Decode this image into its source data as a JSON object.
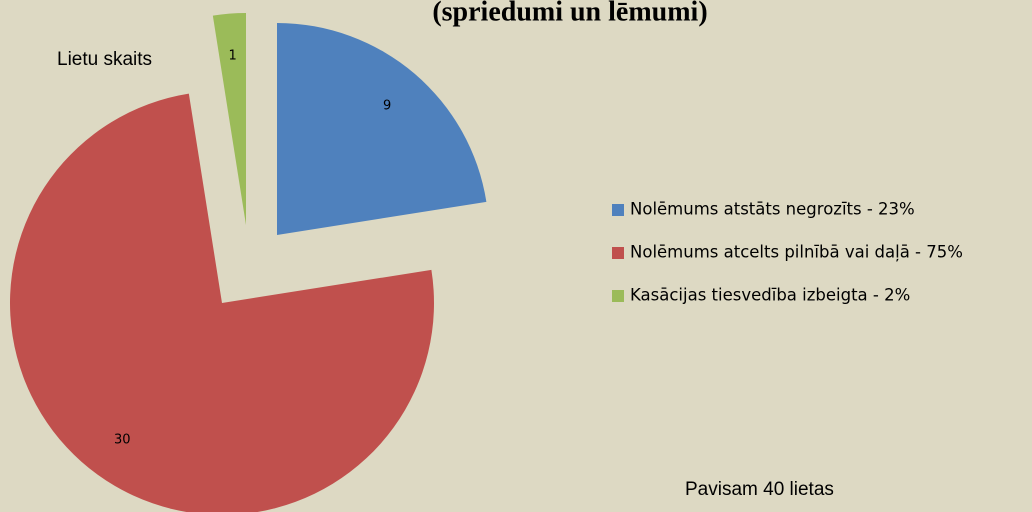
{
  "chart_data": {
    "type": "pie",
    "title": "(spriedumi un lēmumi)",
    "subtitle": "Lietu skaits",
    "annotation": "Pavisam 40 lietas",
    "categories": [
      "Nolēmums atstāts negrozīts - 23%",
      "Nolēmums atcelts pilnībā vai daļā - 75%",
      "Kasācijas tiesvedība izbeigta - 2%"
    ],
    "values": [
      9,
      30,
      1
    ],
    "colors": [
      "#4f81bd",
      "#c0504d",
      "#9bbb59"
    ],
    "legend": "right"
  }
}
